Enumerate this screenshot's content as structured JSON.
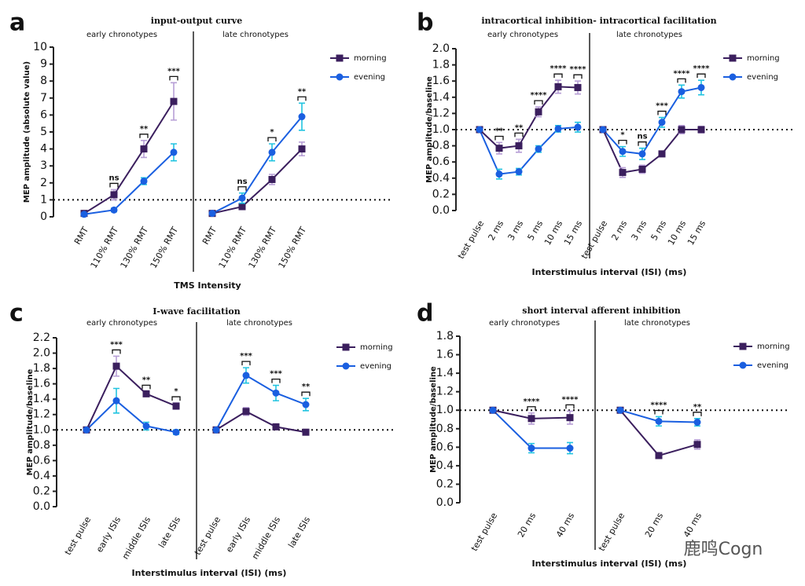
{
  "chart_data": [
    {
      "type": "line",
      "label": "a",
      "title": "input-output curve",
      "groups": [
        "early chronotypes",
        "late chronotypes"
      ],
      "categories": [
        "RMT",
        "110% RMT",
        "130% RMT",
        "150% RMT"
      ],
      "ylabel": "MEP amplitude (absolute value)",
      "xlabel": "TMS Intensity",
      "ylim": [
        0,
        10
      ],
      "yticks": [
        0,
        1,
        2,
        3,
        4,
        5,
        6,
        7,
        8,
        9,
        10
      ],
      "reference": 1,
      "series": [
        {
          "name": "morning",
          "color": "#3b1f5e",
          "error_color": "#b79fd6",
          "marker": "square",
          "values": [
            [
              0.2,
              1.3,
              4.0,
              6.8
            ],
            [
              0.2,
              0.6,
              2.2,
              4.0
            ]
          ],
          "errors": [
            [
              0.1,
              0.3,
              0.5,
              1.1
            ],
            [
              0.05,
              0.1,
              0.3,
              0.4
            ]
          ]
        },
        {
          "name": "evening",
          "color": "#1a5fe0",
          "error_color": "#22c4e0",
          "marker": "circle",
          "values": [
            [
              0.15,
              0.4,
              2.1,
              3.8
            ],
            [
              0.2,
              1.1,
              3.8,
              5.9
            ]
          ],
          "errors": [
            [
              0.05,
              0.1,
              0.2,
              0.5
            ],
            [
              0.05,
              0.3,
              0.5,
              0.8
            ]
          ]
        }
      ],
      "significance": [
        [
          null,
          "ns",
          "**",
          "***"
        ],
        [
          null,
          "ns",
          "*",
          "**"
        ]
      ]
    },
    {
      "type": "line",
      "label": "b",
      "title": "intracortical inhibition- intracortical facilitation",
      "groups": [
        "early chronotypes",
        "late chronotypes"
      ],
      "categories": [
        "test pulse",
        "2 ms",
        "3 ms",
        "5 ms",
        "10 ms",
        "15 ms"
      ],
      "ylabel": "MEP amplitude/baseline",
      "xlabel": "Interstimulus interval (ISI) (ms)",
      "ylim": [
        0,
        2
      ],
      "yticks": [
        {
          "value": 0,
          "label": "0.0"
        },
        0.2,
        0.4,
        0.6,
        0.8,
        {
          "value": 1,
          "label": "1.0"
        },
        1.2,
        1.4,
        1.6,
        1.8,
        {
          "value": 2,
          "label": "2.0"
        }
      ],
      "reference": 1,
      "series": [
        {
          "name": "morning",
          "color": "#3b1f5e",
          "error_color": "#b79fd6",
          "marker": "square",
          "values": [
            [
              1.0,
              0.77,
              0.8,
              1.22,
              1.53,
              1.52
            ],
            [
              1.0,
              0.47,
              0.51,
              0.7,
              1.0,
              1.0
            ]
          ],
          "errors": [
            [
              0,
              0.07,
              0.08,
              0.06,
              0.08,
              0.08
            ],
            [
              0,
              0.06,
              0.05,
              0.03,
              0.05,
              0.04
            ]
          ]
        },
        {
          "name": "evening",
          "color": "#1a5fe0",
          "error_color": "#22c4e0",
          "marker": "circle",
          "values": [
            [
              1.0,
              0.45,
              0.48,
              0.76,
              1.01,
              1.03
            ],
            [
              1.0,
              0.73,
              0.7,
              1.09,
              1.47,
              1.52
            ]
          ],
          "errors": [
            [
              0,
              0.06,
              0.04,
              0.04,
              0.04,
              0.06
            ],
            [
              0,
              0.06,
              0.07,
              0.06,
              0.08,
              0.09
            ]
          ]
        }
      ],
      "significance": [
        [
          null,
          "**",
          "**",
          "****",
          "****",
          "****"
        ],
        [
          null,
          "*",
          "ns",
          "***",
          "****",
          "****"
        ]
      ]
    },
    {
      "type": "line",
      "label": "c",
      "title": "I-wave facilitation",
      "groups": [
        "early chronotypes",
        "late chronotypes"
      ],
      "categories": [
        "test pulse",
        "early ISIs",
        "middle ISIs",
        "late ISIs"
      ],
      "ylabel": "MEP amplitude/baseline",
      "xlabel": "Interstimulus interval (ISI) (ms)",
      "ylim": [
        0,
        2.2
      ],
      "yticks": [
        {
          "value": 0,
          "label": "0.0"
        },
        0.2,
        0.4,
        0.6,
        0.8,
        {
          "value": 1,
          "label": "1.0"
        },
        1.2,
        1.4,
        1.6,
        1.8,
        {
          "value": 2,
          "label": "2.0"
        },
        2.2
      ],
      "reference": 1,
      "series": [
        {
          "name": "morning",
          "color": "#3b1f5e",
          "error_color": "#b79fd6",
          "marker": "square",
          "values": [
            [
              1.0,
              1.83,
              1.47,
              1.31
            ],
            [
              1.0,
              1.24,
              1.04,
              0.97
            ]
          ],
          "errors": [
            [
              0,
              0.13,
              0.03,
              0.04
            ],
            [
              0,
              0.05,
              0.02,
              0.03
            ]
          ]
        },
        {
          "name": "evening",
          "color": "#1a5fe0",
          "error_color": "#22c4e0",
          "marker": "circle",
          "values": [
            [
              1.0,
              1.38,
              1.05,
              0.97
            ],
            [
              1.0,
              1.71,
              1.48,
              1.33
            ]
          ],
          "errors": [
            [
              0,
              0.16,
              0.05,
              0.03
            ],
            [
              0,
              0.1,
              0.1,
              0.08
            ]
          ]
        }
      ],
      "significance": [
        [
          null,
          "***",
          "**",
          "*"
        ],
        [
          null,
          "***",
          "***",
          "**"
        ]
      ]
    },
    {
      "type": "line",
      "label": "d",
      "title": "short interval afferent inhibition",
      "groups": [
        "early chronotypes",
        "late chronotypes"
      ],
      "categories": [
        "test pulse",
        "20 ms",
        "40 ms"
      ],
      "ylabel": "MEP amplitude/baseline",
      "xlabel": "Interstimulus interval (ISI) (ms)",
      "ylim": [
        0,
        1.8
      ],
      "yticks": [
        {
          "value": 0,
          "label": "0.0"
        },
        0.2,
        0.4,
        0.6,
        0.8,
        {
          "value": 1,
          "label": "1.0"
        },
        1.2,
        1.4,
        1.6,
        1.8
      ],
      "reference": 1,
      "series": [
        {
          "name": "morning",
          "color": "#3b1f5e",
          "error_color": "#b79fd6",
          "marker": "square",
          "values": [
            [
              1.0,
              0.91,
              0.92
            ],
            [
              1.0,
              0.51,
              0.63
            ]
          ],
          "errors": [
            [
              0,
              0.06,
              0.07
            ],
            [
              0,
              0.03,
              0.05
            ]
          ]
        },
        {
          "name": "evening",
          "color": "#1a5fe0",
          "error_color": "#22c4e0",
          "marker": "circle",
          "values": [
            [
              1.0,
              0.59,
              0.59
            ],
            [
              1.0,
              0.88,
              0.87
            ]
          ],
          "errors": [
            [
              0,
              0.05,
              0.06
            ],
            [
              0,
              0.05,
              0.04
            ]
          ]
        }
      ],
      "significance": [
        [
          null,
          "****",
          "****"
        ],
        [
          null,
          "****",
          "**"
        ]
      ]
    }
  ],
  "watermark": "鹿鸣Cogn"
}
